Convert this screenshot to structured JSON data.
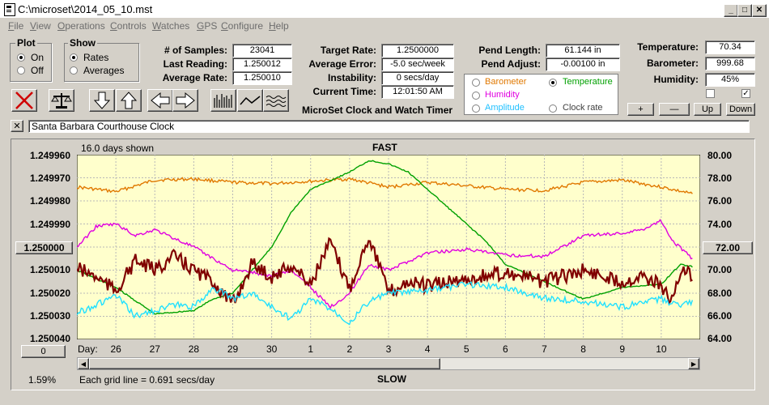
{
  "window": {
    "title": "C:\\microset\\2014_05_10.mst",
    "min": "_",
    "max": "□",
    "close": "✕"
  },
  "menu": [
    "File",
    "View",
    "Operations",
    "Controls",
    "Watches",
    "GPS",
    "Configure",
    "Help"
  ],
  "plot": {
    "title": "Plot",
    "on": "On",
    "off": "Off"
  },
  "show": {
    "title": "Show",
    "rates": "Rates",
    "averages": "Averages"
  },
  "stats": {
    "samples_label": "# of Samples:",
    "samples": "23041",
    "last_label": "Last Reading:",
    "last": "1.250012",
    "avg_label": "Average Rate:",
    "avg": "1.250010",
    "target_label": "Target Rate:",
    "target": "1.2500000",
    "avgerr_label": "Average Error:",
    "avgerr": "-5.0 sec/week",
    "instab_label": "Instability:",
    "instab": "0 secs/day",
    "time_label": "Current Time:",
    "time": "12:01:50 AM",
    "pendlen_label": "Pend Length:",
    "pendlen": "61.144 in",
    "pendadj_label": "Pend Adjust:",
    "pendadj": "-0.00100 in",
    "temp_label": "Temperature:",
    "temp": "70.34",
    "baro_label": "Barometer:",
    "baro": "999.68",
    "hum_label": "Humidity:",
    "hum": "45%"
  },
  "app_title": "MicroSet Clock and Watch Timer",
  "sensors": {
    "barometer": "Barometer",
    "temperature": "Temperature",
    "humidity": "Humidity",
    "amplitude": "Amplitude",
    "clockrate": "Clock rate"
  },
  "buttons": {
    "plus": "+",
    "minus": "—",
    "up": "Up",
    "down": "Down",
    "close_x": "✕"
  },
  "clock_name": "Santa Barbara Courthouse Clock",
  "chart_header": {
    "days_shown": "16.0 days shown",
    "fast": "FAST",
    "slow": "SLOW",
    "grid_note": "Each grid line = 0.691 secs/day",
    "percent": "1.59%",
    "day_label": "Day:"
  },
  "y_mid_button": "1.250000",
  "right_mid_button": "72.00",
  "scroll_box": "0",
  "colors": {
    "plot_bg": "#ffffcc",
    "rate": "#800000",
    "temperature": "#00a000",
    "barometer": "#e07800",
    "humidity": "#e000e0",
    "amplitude": "#20e0ff"
  },
  "chart_data": {
    "type": "line",
    "left_axis": {
      "ticks": [
        "1.249960",
        "1.249970",
        "1.249980",
        "1.249990",
        "1.250000",
        "1.250010",
        "1.250020",
        "1.250030",
        "1.250040"
      ],
      "ylim": [
        1.24996,
        1.25004
      ],
      "inverted": true
    },
    "right_axis": {
      "ticks": [
        "80.00",
        "78.00",
        "76.00",
        "74.00",
        "72.00",
        "70.00",
        "68.00",
        "66.00",
        "64.00"
      ],
      "ylim": [
        64,
        80
      ]
    },
    "x_ticks": [
      "26",
      "27",
      "28",
      "29",
      "30",
      "1",
      "2",
      "3",
      "4",
      "5",
      "6",
      "7",
      "8",
      "9",
      "10"
    ],
    "x_range": [
      25.0,
      41.0
    ],
    "series": [
      {
        "name": "Barometer",
        "axis": "right",
        "color": "#e07800",
        "x": [
          25,
          26,
          27,
          28,
          29,
          30,
          31,
          32,
          33,
          34,
          35,
          36,
          37,
          38,
          39,
          40,
          40.8
        ],
        "y": [
          77.2,
          76.8,
          77.8,
          77.9,
          77.6,
          77.5,
          77.7,
          77.9,
          77.2,
          77.6,
          77.3,
          77.0,
          76.9,
          77.6,
          77.8,
          77.2,
          76.6
        ]
      },
      {
        "name": "Temperature",
        "axis": "right",
        "color": "#00a000",
        "x": [
          25,
          26,
          27,
          28,
          28.5,
          29,
          29.5,
          30,
          30.5,
          31,
          32,
          32.5,
          33,
          33.5,
          34,
          35,
          35.5,
          36,
          37,
          38,
          39,
          40,
          40.5,
          40.8
        ],
        "y": [
          70.0,
          68.5,
          66.2,
          66.5,
          67.5,
          68.0,
          70.0,
          72.0,
          75.0,
          77.0,
          78.5,
          79.5,
          79.2,
          78.5,
          77.0,
          74.0,
          72.5,
          70.5,
          69.0,
          67.5,
          68.5,
          68.8,
          70.5,
          70.3
        ]
      },
      {
        "name": "Humidity",
        "axis": "right",
        "color": "#e000e0",
        "x": [
          25,
          25.5,
          26,
          26.5,
          27,
          28,
          28.5,
          29,
          29.5,
          30,
          30.5,
          31,
          31.5,
          32,
          32.5,
          33,
          34,
          35,
          36,
          37,
          38,
          39,
          39.5,
          40,
          40.3,
          40.8
        ],
        "y": [
          72.0,
          73.8,
          74.0,
          73.0,
          73.5,
          72.0,
          71.0,
          70.0,
          69.8,
          69.5,
          70.0,
          68.5,
          66.8,
          68.0,
          70.5,
          70.0,
          71.5,
          71.8,
          71.3,
          71.2,
          73.0,
          73.2,
          73.5,
          74.3,
          72.5,
          71.0
        ]
      },
      {
        "name": "Rate",
        "axis": "left",
        "color": "#800000",
        "x": [
          25,
          25.5,
          26,
          26.5,
          27,
          27.5,
          28,
          28.5,
          29,
          29.5,
          30,
          30.5,
          31,
          31.5,
          32,
          32.5,
          33,
          33.5,
          34,
          35,
          36,
          37,
          38,
          39,
          39.5,
          40,
          40.3,
          40.5,
          40.8
        ],
        "y": [
          1.250009,
          1.250013,
          1.250019,
          1.250006,
          1.25001,
          1.250004,
          1.25001,
          1.250015,
          1.250025,
          1.250007,
          1.250013,
          1.250008,
          1.250016,
          1.249998,
          1.250018,
          1.249995,
          1.25002,
          1.250015,
          1.250017,
          1.250014,
          1.250011,
          1.250015,
          1.25001,
          1.250015,
          1.250012,
          1.250017,
          1.250024,
          1.25001,
          1.250012
        ]
      },
      {
        "name": "Amplitude",
        "axis": "right",
        "color": "#20e0ff",
        "x": [
          25,
          25.5,
          26,
          26.5,
          27,
          27.5,
          28,
          28.5,
          29,
          29.5,
          30,
          30.5,
          31,
          31.5,
          32,
          32.5,
          33,
          34,
          35,
          36,
          37,
          38,
          39,
          40,
          40.5,
          40.8
        ],
        "y": [
          66.3,
          67.0,
          67.8,
          66.0,
          66.5,
          67.0,
          66.8,
          68.5,
          67.5,
          68.0,
          66.8,
          65.8,
          67.5,
          66.7,
          65.5,
          67.3,
          68.0,
          68.2,
          68.8,
          68.5,
          67.6,
          67.3,
          66.8,
          67.5,
          66.8,
          67.3
        ]
      }
    ]
  }
}
